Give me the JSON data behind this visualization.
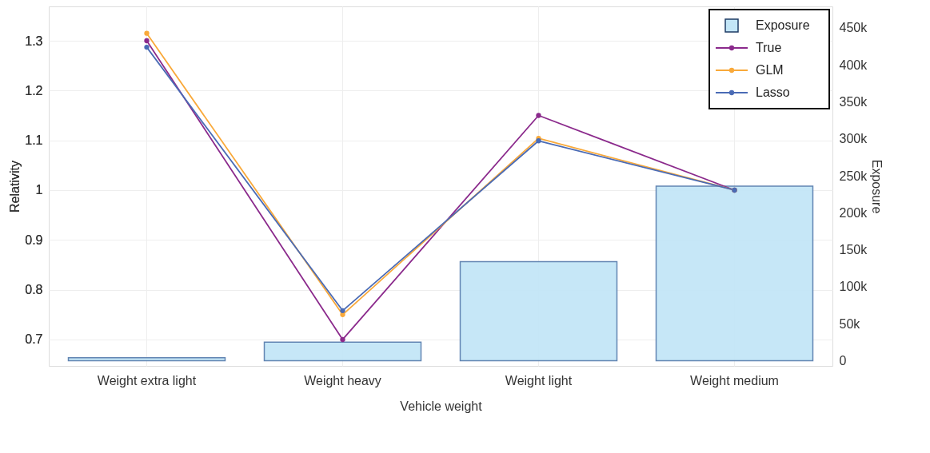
{
  "chart_data": {
    "type": "bar",
    "xlabel": "Vehicle weight",
    "ylabel": "Relativity",
    "y2label": "Exposure",
    "categories": [
      "Weight extra light",
      "Weight heavy",
      "Weight light",
      "Weight medium"
    ],
    "series": [
      {
        "name": "Exposure",
        "axis": "y2",
        "color": "#c3e6f7",
        "values": [
          4000,
          25000,
          134000,
          236000
        ]
      },
      {
        "name": "True",
        "type": "line",
        "color": "#8b2a8c",
        "values": [
          1.3,
          0.7,
          1.15,
          1.0
        ]
      },
      {
        "name": "GLM",
        "type": "line",
        "color": "#f9a93a",
        "values": [
          1.315,
          0.75,
          1.104,
          1.0
        ]
      },
      {
        "name": "Lasso",
        "type": "line",
        "color": "#4a6bb5",
        "values": [
          1.287,
          0.758,
          1.099,
          1.0
        ]
      }
    ],
    "ylim": [
      0.647,
      1.369
    ],
    "yticks": [
      {
        "value": 0.7,
        "label": "0.7"
      },
      {
        "value": 0.8,
        "label": "0.8"
      },
      {
        "value": 0.9,
        "label": "0.9"
      },
      {
        "value": 1.0,
        "label": "1"
      },
      {
        "value": 1.1,
        "label": "1.1"
      },
      {
        "value": 1.2,
        "label": "1.2"
      },
      {
        "value": 1.3,
        "label": "1.3"
      }
    ],
    "y2lim": [
      -7000,
      479000
    ],
    "y2ticks": [
      0,
      {
        "value": 50000,
        "label": "50k"
      },
      {
        "value": 100000,
        "label": "100k"
      },
      {
        "value": 150000,
        "label": "150k"
      },
      {
        "value": 200000,
        "label": "200k"
      },
      {
        "value": 250000,
        "label": "250k"
      },
      {
        "value": 300000,
        "label": "300k"
      },
      {
        "value": 350000,
        "label": "350k"
      },
      {
        "value": 400000,
        "label": "400k"
      },
      {
        "value": 450000,
        "label": "450k"
      }
    ],
    "grid": true,
    "legend": "top right",
    "marker": "circle",
    "line_style": "solid"
  }
}
